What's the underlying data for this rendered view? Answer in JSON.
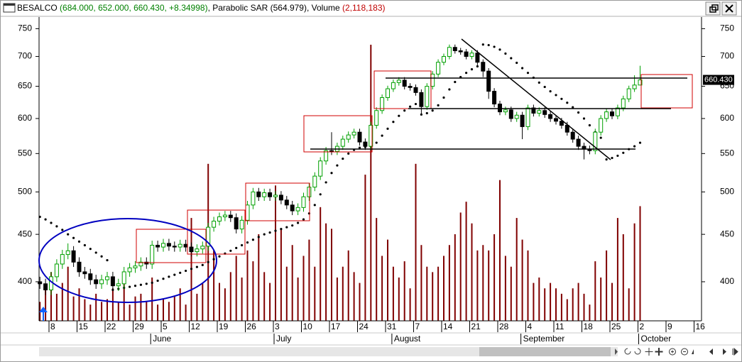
{
  "window": {
    "symbol": "BESALCO",
    "ohlc": "(684.000, 652.000, 660.430, +8.34998)",
    "indicator": ", Parabolic SAR (564.979)",
    "volume_label": ", Volume",
    "volume_value": "(2,118,183)"
  },
  "chart_data": {
    "type": "candlestick",
    "log_y": true,
    "grid": false,
    "ylim": [
      363,
      772
    ],
    "yticks": [
      400,
      450,
      500,
      550,
      600,
      650,
      700,
      750
    ],
    "up_color": "#00a000",
    "down_color": "#000000",
    "volume_color": "#800000",
    "sar_color": "#000000",
    "last_price": {
      "value": 660.43,
      "label": "660.430"
    },
    "categories": [
      null,
      null,
      "8",
      null,
      null,
      null,
      null,
      "15",
      null,
      null,
      null,
      null,
      "22",
      null,
      null,
      null,
      null,
      "29",
      null,
      null,
      null,
      null,
      "5",
      null,
      null,
      null,
      null,
      "12",
      null,
      null,
      null,
      null,
      "19",
      null,
      null,
      null,
      null,
      "26",
      null,
      null,
      null,
      null,
      "3",
      null,
      null,
      null,
      null,
      "10",
      null,
      null,
      null,
      null,
      "17",
      null,
      null,
      null,
      null,
      "24",
      null,
      null,
      null,
      null,
      "31",
      null,
      null,
      null,
      null,
      "7",
      null,
      null,
      null,
      null,
      "14",
      null,
      null,
      null,
      null,
      "21",
      null,
      null,
      null,
      null,
      "28",
      null,
      null,
      null,
      null,
      "4",
      null,
      null,
      null,
      null,
      "11",
      null,
      null,
      null,
      null,
      "18",
      null,
      null,
      null,
      null,
      "25",
      null,
      null,
      null,
      null,
      "2",
      null,
      null,
      null,
      null,
      "9",
      null,
      null,
      null,
      null,
      "16"
    ],
    "month_labels": [
      null,
      null,
      null,
      null,
      null,
      null,
      null,
      null,
      null,
      null,
      null,
      null,
      null,
      null,
      null,
      null,
      null,
      null,
      null,
      null,
      "June",
      null,
      null,
      null,
      null,
      null,
      null,
      null,
      null,
      null,
      null,
      null,
      null,
      null,
      null,
      null,
      null,
      null,
      null,
      null,
      null,
      null,
      "July",
      null,
      null,
      null,
      null,
      null,
      null,
      null,
      null,
      null,
      null,
      null,
      null,
      null,
      null,
      null,
      null,
      null,
      null,
      null,
      null,
      "August",
      null,
      null,
      null,
      null,
      null,
      null,
      null,
      null,
      null,
      null,
      null,
      null,
      null,
      null,
      null,
      null,
      null,
      null,
      null,
      null,
      null,
      null,
      "September",
      null,
      null,
      null,
      null,
      null,
      null,
      null,
      null,
      null,
      null,
      null,
      null,
      null,
      null,
      null,
      null,
      null,
      null,
      null,
      null,
      "October",
      null,
      null,
      null,
      null,
      null,
      null,
      null,
      null,
      null,
      null
    ],
    "open": [
      400,
      398,
      392,
      405,
      418,
      428,
      432,
      420,
      410,
      408,
      402,
      398,
      402,
      405,
      396,
      398,
      410,
      414,
      416,
      420,
      418,
      438,
      436,
      440,
      437,
      436,
      439,
      436,
      431,
      434,
      437,
      458,
      465,
      470,
      472,
      469,
      456,
      466,
      484,
      500,
      494,
      499,
      494,
      496,
      490,
      484,
      477,
      481,
      494,
      506,
      520,
      540,
      554,
      553,
      560,
      570,
      576,
      580,
      566,
      560,
      590,
      612,
      632,
      646,
      656,
      660,
      650,
      648,
      640,
      618,
      650,
      670,
      690,
      700,
      716,
      710,
      708,
      700,
      706,
      690,
      675,
      642,
      622,
      610,
      613,
      600,
      605,
      588,
      616,
      608,
      612,
      606,
      600,
      596,
      590,
      580,
      570,
      560,
      556,
      554,
      580,
      600,
      610,
      604,
      616,
      630,
      646,
      652,
      null,
      null,
      null,
      null,
      null,
      null,
      null,
      null,
      null,
      null
    ],
    "high": [
      405,
      403,
      410,
      423,
      433,
      440,
      437,
      425,
      415,
      413,
      407,
      407,
      410,
      410,
      403,
      415,
      419,
      421,
      425,
      425,
      443,
      443,
      445,
      445,
      442,
      444,
      444,
      441,
      439,
      442,
      463,
      470,
      475,
      477,
      477,
      474,
      471,
      489,
      505,
      505,
      504,
      504,
      501,
      501,
      495,
      489,
      486,
      499,
      511,
      525,
      545,
      559,
      580,
      565,
      575,
      581,
      585,
      585,
      571,
      595,
      617,
      637,
      651,
      661,
      665,
      665,
      655,
      653,
      645,
      655,
      675,
      695,
      705,
      721,
      721,
      715,
      713,
      711,
      711,
      695,
      680,
      647,
      627,
      618,
      618,
      610,
      610,
      621,
      621,
      617,
      617,
      611,
      605,
      601,
      595,
      585,
      575,
      565,
      561,
      585,
      605,
      615,
      615,
      621,
      635,
      651,
      668,
      684,
      null,
      null,
      null,
      null,
      null,
      null,
      null,
      null,
      null,
      null
    ],
    "low": [
      393,
      387,
      387,
      400,
      413,
      423,
      415,
      405,
      403,
      397,
      393,
      393,
      397,
      391,
      391,
      393,
      405,
      409,
      411,
      413,
      413,
      431,
      431,
      432,
      431,
      431,
      431,
      426,
      426,
      429,
      432,
      453,
      460,
      465,
      464,
      451,
      451,
      461,
      479,
      489,
      489,
      489,
      489,
      485,
      479,
      472,
      472,
      476,
      489,
      501,
      515,
      535,
      548,
      548,
      555,
      565,
      571,
      561,
      555,
      555,
      585,
      607,
      627,
      641,
      651,
      645,
      643,
      635,
      605,
      613,
      645,
      665,
      685,
      695,
      705,
      703,
      695,
      695,
      685,
      665,
      630,
      617,
      605,
      605,
      595,
      595,
      570,
      583,
      603,
      603,
      601,
      595,
      591,
      585,
      575,
      565,
      555,
      542,
      549,
      549,
      575,
      595,
      599,
      599,
      611,
      625,
      641,
      652,
      null,
      null,
      null,
      null,
      null,
      null,
      null,
      null,
      null,
      null
    ],
    "close": [
      398,
      392,
      405,
      418,
      428,
      432,
      420,
      410,
      408,
      402,
      398,
      402,
      405,
      396,
      398,
      410,
      414,
      416,
      420,
      418,
      438,
      436,
      440,
      437,
      436,
      439,
      436,
      431,
      434,
      437,
      458,
      465,
      470,
      472,
      469,
      456,
      466,
      484,
      500,
      494,
      499,
      494,
      496,
      490,
      484,
      477,
      481,
      494,
      506,
      520,
      540,
      554,
      553,
      560,
      570,
      576,
      580,
      566,
      560,
      590,
      612,
      632,
      646,
      656,
      660,
      650,
      648,
      640,
      618,
      650,
      670,
      690,
      700,
      716,
      710,
      708,
      700,
      706,
      690,
      675,
      642,
      622,
      610,
      613,
      600,
      605,
      588,
      616,
      608,
      612,
      606,
      600,
      596,
      590,
      580,
      570,
      560,
      556,
      554,
      580,
      600,
      610,
      604,
      616,
      630,
      646,
      652,
      660.43,
      null,
      null,
      null,
      null,
      null,
      null,
      null,
      null,
      null,
      null
    ],
    "sar": [
      470,
      467,
      463,
      459,
      455,
      450,
      446,
      442,
      438,
      434,
      430,
      426,
      422,
      392,
      393,
      394,
      395,
      396,
      397,
      398,
      399,
      401,
      403,
      405,
      407,
      409,
      411,
      413,
      415,
      417,
      420,
      423,
      426,
      429,
      432,
      435,
      438,
      441,
      444,
      447,
      450,
      452,
      454,
      456,
      458,
      460,
      463,
      467,
      474,
      484,
      497,
      512,
      524,
      534,
      543,
      550,
      555,
      558,
      559,
      560,
      565,
      575,
      585,
      595,
      604,
      612,
      618,
      622,
      606,
      608,
      612,
      620,
      632,
      645,
      657,
      665,
      672,
      678,
      683,
      721,
      720,
      717,
      712,
      705,
      697,
      689,
      680,
      672,
      664,
      656,
      649,
      642,
      636,
      630,
      624,
      617,
      609,
      600,
      590,
      580,
      572,
      542,
      544,
      547,
      551,
      556,
      560,
      564.979,
      null,
      null,
      null,
      null,
      null,
      null,
      null,
      null,
      null,
      null
    ],
    "volume": [
      350000,
      600000,
      900000,
      500000,
      700000,
      1000000,
      450000,
      600000,
      400000,
      300000,
      500000,
      350000,
      400000,
      600000,
      350000,
      700000,
      300000,
      450000,
      500000,
      350000,
      800000,
      300000,
      400000,
      350000,
      450000,
      600000,
      300000,
      1900000,
      500000,
      700000,
      2900000,
      1300000,
      700000,
      600000,
      900000,
      1200000,
      800000,
      1300000,
      1100000,
      1600000,
      900000,
      700000,
      2500000,
      1700000,
      1000000,
      1400000,
      800000,
      1200000,
      1500000,
      1000000,
      2100000,
      1800000,
      1700000,
      800000,
      1000000,
      1300000,
      900000,
      700000,
      2700000,
      5100000,
      1900000,
      1200000,
      1500000,
      1000000,
      800000,
      1100000,
      600000,
      2900000,
      1400000,
      1000000,
      900000,
      1000000,
      1200000,
      1400000,
      1600000,
      2000000,
      2200000,
      1800000,
      1300000,
      1400000,
      1300000,
      1600000,
      2600000,
      1200000,
      1000000,
      1900000,
      1500000,
      1300000,
      700000,
      800000,
      600000,
      700000,
      600000,
      500000,
      400000,
      600000,
      700000,
      500000,
      300000,
      1100000,
      800000,
      1300000,
      700000,
      1900000,
      1600000,
      600000,
      1800000,
      2118183,
      null,
      null,
      null,
      null,
      null,
      null,
      null,
      null,
      null,
      null
    ]
  }
}
